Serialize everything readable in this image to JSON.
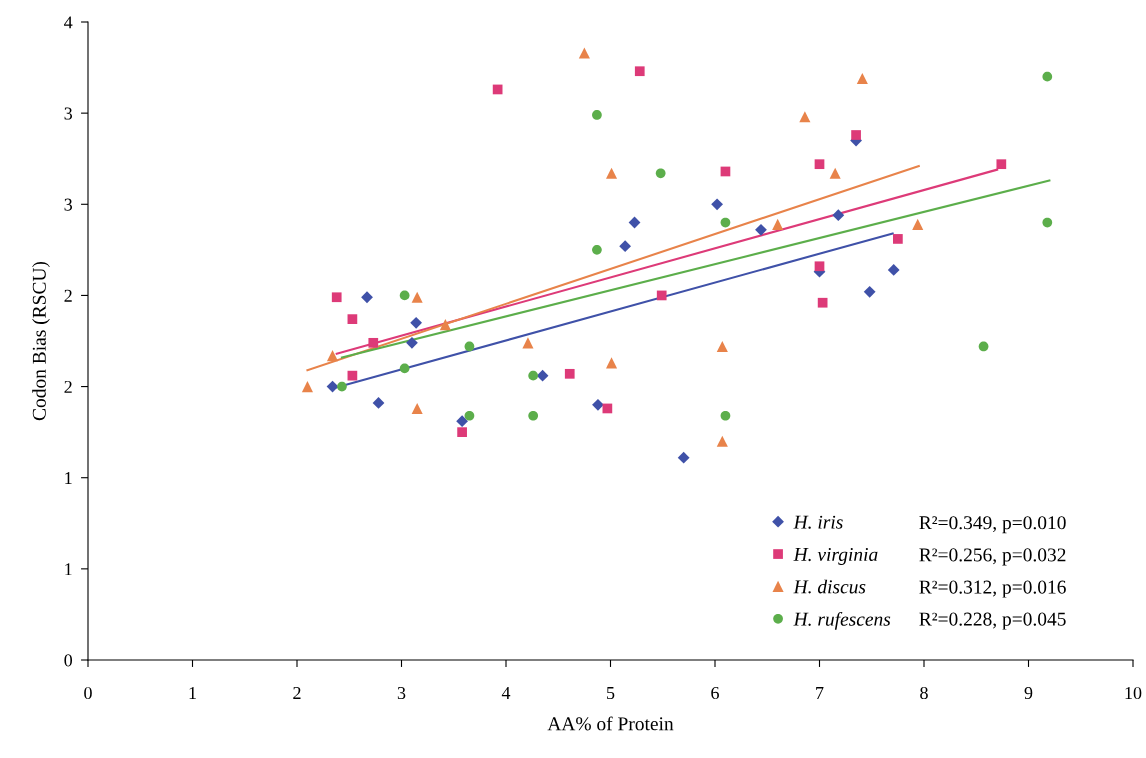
{
  "chart_data": {
    "type": "scatter",
    "xlabel": "AA% of Protein",
    "ylabel": "Codon Bias (RSCU)",
    "xlim": [
      0,
      10
    ],
    "xticks": [
      0,
      1,
      2,
      3,
      4,
      5,
      6,
      7,
      8,
      9,
      10
    ],
    "ylim": [
      0,
      3.5
    ],
    "yticks": [
      {
        "value": 0,
        "label": "0"
      },
      {
        "value": 0.5,
        "label": "1"
      },
      {
        "value": 1,
        "label": "1"
      },
      {
        "value": 1.5,
        "label": "2"
      },
      {
        "value": 2,
        "label": "2"
      },
      {
        "value": 2.5,
        "label": "3"
      },
      {
        "value": 3,
        "label": "3"
      },
      {
        "value": 3.5,
        "label": "4"
      }
    ],
    "grid": false,
    "legend": "bottom right",
    "annotations": [
      "R²=0.349, p=0.010",
      "R²=0.256, p=0.032",
      "R²=0.312, p=0.016",
      "R²=0.228, p=0.045"
    ],
    "series": [
      {
        "name": "H. iris",
        "color": "#3f51a8",
        "marker": "diamond",
        "x": [
          2.34,
          2.67,
          2.78,
          3.1,
          3.14,
          3.58,
          4.35,
          4.88,
          5.14,
          5.23,
          5.7,
          6.02,
          6.44,
          7.0,
          7.18,
          7.35,
          7.48,
          7.71
        ],
        "values": [
          1.5,
          1.99,
          1.41,
          1.74,
          1.85,
          1.31,
          1.56,
          1.4,
          2.27,
          2.4,
          1.11,
          2.5,
          2.36,
          2.13,
          2.44,
          2.85,
          2.02,
          2.14
        ]
      },
      {
        "name": "H. virginia",
        "color": "#dd3a78",
        "marker": "square",
        "x": [
          2.38,
          2.53,
          2.73,
          2.53,
          3.58,
          3.92,
          5.28,
          4.61,
          4.97,
          5.49,
          6.1,
          7.0,
          7.35,
          8.74,
          7.0,
          7.03,
          7.75
        ],
        "values": [
          1.99,
          1.87,
          1.74,
          1.56,
          1.25,
          3.13,
          3.23,
          1.57,
          1.38,
          2.0,
          2.68,
          2.72,
          2.88,
          2.72,
          2.16,
          1.96,
          2.31
        ]
      },
      {
        "name": "H. discus",
        "color": "#e8834a",
        "marker": "triangle",
        "x": [
          2.1,
          2.34,
          3.15,
          3.42,
          3.15,
          4.21,
          4.75,
          5.01,
          5.01,
          6.07,
          6.07,
          6.6,
          6.86,
          7.15,
          7.41,
          7.94
        ],
        "values": [
          1.5,
          1.67,
          1.99,
          1.84,
          1.38,
          1.74,
          3.33,
          2.67,
          1.63,
          1.72,
          1.2,
          2.39,
          2.98,
          2.67,
          3.19,
          2.39
        ]
      },
      {
        "name": "H. rufescens",
        "color": "#5cae4b",
        "marker": "circle",
        "x": [
          2.43,
          3.03,
          3.03,
          3.65,
          3.65,
          4.26,
          4.26,
          4.87,
          4.87,
          5.48,
          6.1,
          6.1,
          8.57,
          9.18,
          9.18
        ],
        "values": [
          1.5,
          2.0,
          1.6,
          1.72,
          1.34,
          1.56,
          1.34,
          2.99,
          2.25,
          2.67,
          2.4,
          1.34,
          1.72,
          3.2,
          2.4
        ]
      },
      {
        "type": "line",
        "color": "#3f51a8",
        "x": [
          2.34,
          7.7
        ],
        "values": [
          1.49,
          2.34
        ]
      },
      {
        "type": "line",
        "color": "#dd3a78",
        "x": [
          2.38,
          8.7
        ],
        "values": [
          1.68,
          2.69
        ]
      },
      {
        "type": "line",
        "color": "#e8834a",
        "x": [
          2.1,
          7.95
        ],
        "values": [
          1.59,
          2.71
        ]
      },
      {
        "type": "line",
        "color": "#5cae4b",
        "x": [
          2.43,
          9.2
        ],
        "values": [
          1.66,
          2.63
        ]
      }
    ]
  }
}
